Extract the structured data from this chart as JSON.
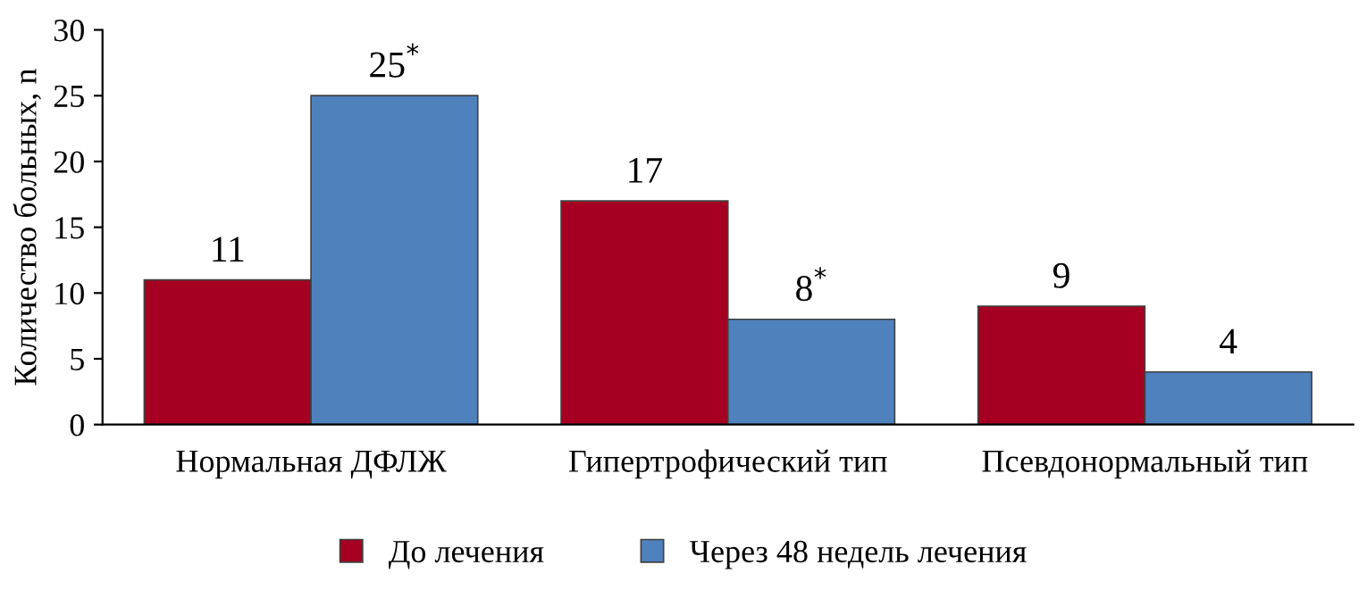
{
  "chart_data": {
    "type": "bar",
    "ylabel": "Количество больных, n",
    "categories": [
      "Нормальная ДФЛЖ",
      "Гипертрофический тип",
      "Псевдонормальный тип"
    ],
    "series": [
      {
        "name": "До лечения",
        "color": "#a50021",
        "values": [
          11,
          17,
          9
        ],
        "value_labels": [
          "11",
          "17",
          "9"
        ]
      },
      {
        "name": "Через 48 недель лечения",
        "color": "#4f81bd",
        "values": [
          25,
          8,
          4
        ],
        "value_labels": [
          "25$^{*}$",
          "8$^{*}$",
          "4"
        ]
      }
    ],
    "ylim": [
      0,
      30
    ],
    "yticks": [
      0,
      5,
      10,
      15,
      20,
      25,
      30
    ],
    "grid": false,
    "legend": "bottom"
  }
}
